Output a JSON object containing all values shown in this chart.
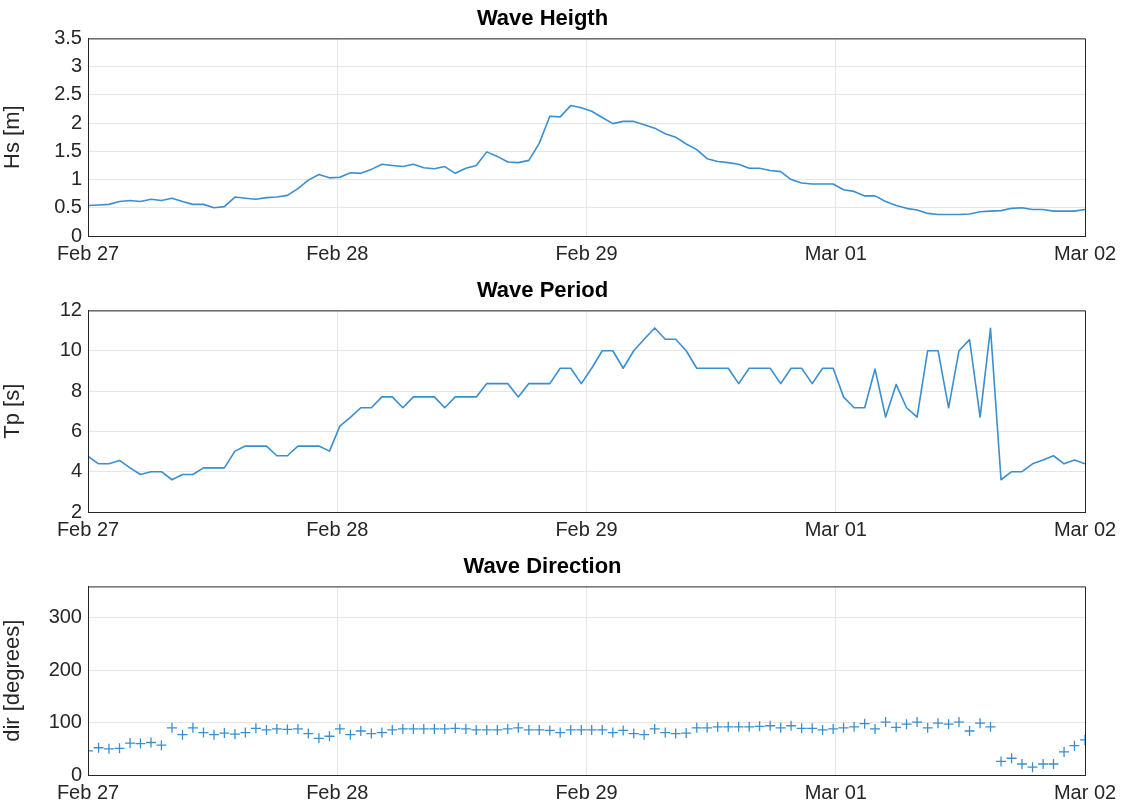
{
  "chart_data": [
    {
      "type": "line",
      "title": "Wave Heigth",
      "ylabel": "Hs [m]",
      "xlim": [
        "--02-27",
        "--03-02"
      ],
      "xticks": [
        {
          "value": "--02-27",
          "label": "Feb 27"
        },
        {
          "value": "--02-28",
          "label": "Feb 28"
        },
        {
          "value": "--02-29",
          "label": "Feb 29"
        },
        {
          "value": "--03-01",
          "label": "Mar 01"
        },
        {
          "value": "--03-02",
          "label": "Mar 02"
        }
      ],
      "ylim": [
        0,
        3.5
      ],
      "yticks": [
        0,
        0.5,
        1,
        1.5,
        2,
        2.5,
        3,
        3.5
      ],
      "grid": true,
      "marker": "none",
      "x": [
        "--02-27T00:00",
        "--02-27T01:01",
        "--02-27T02:01",
        "--02-27T03:02",
        "--02-27T04:03",
        "--02-27T05:03",
        "--02-27T06:04",
        "--02-27T07:04",
        "--02-27T08:05",
        "--02-27T09:06",
        "--02-27T10:06",
        "--02-27T11:07",
        "--02-27T12:08",
        "--02-27T13:08",
        "--02-27T14:09",
        "--02-27T15:09",
        "--02-27T16:10",
        "--02-27T17:11",
        "--02-27T18:11",
        "--02-27T19:12",
        "--02-27T20:13",
        "--02-27T21:13",
        "--02-27T22:14",
        "--02-27T23:15",
        "--02-28T00:15",
        "--02-28T01:16",
        "--02-28T02:16",
        "--02-28T03:17",
        "--02-28T04:18",
        "--02-28T05:18",
        "--02-28T06:19",
        "--02-28T07:20",
        "--02-28T08:20",
        "--02-28T09:21",
        "--02-28T10:21",
        "--02-28T11:22",
        "--02-28T12:23",
        "--02-28T13:23",
        "--02-28T14:24",
        "--02-28T15:25",
        "--02-28T16:25",
        "--02-28T17:26",
        "--02-28T18:27",
        "--02-28T19:27",
        "--02-28T20:28",
        "--02-28T21:28",
        "--02-28T22:29",
        "--02-28T23:30",
        "--02-29T00:30",
        "--02-29T01:31",
        "--02-29T02:32",
        "--02-29T03:32",
        "--02-29T04:33",
        "--02-29T05:33",
        "--02-29T06:34",
        "--02-29T07:35",
        "--02-29T08:35",
        "--02-29T09:36",
        "--02-29T10:37",
        "--02-29T11:37",
        "--02-29T12:38",
        "--02-29T13:39",
        "--02-29T14:39",
        "--02-29T15:40",
        "--02-29T16:40",
        "--02-29T17:41",
        "--02-29T18:42",
        "--02-29T19:42",
        "--02-29T20:43",
        "--02-29T21:44",
        "--02-29T22:44",
        "--02-29T23:45",
        "--03-01T00:45",
        "--03-01T01:46",
        "--03-01T02:47",
        "--03-01T03:47",
        "--03-01T04:48",
        "--03-01T05:49",
        "--03-01T06:49",
        "--03-01T07:50",
        "--03-01T08:51",
        "--03-01T09:51",
        "--03-01T10:52",
        "--03-01T11:52",
        "--03-01T12:53",
        "--03-01T13:54",
        "--03-01T14:54",
        "--03-01T15:55",
        "--03-01T16:56",
        "--03-01T17:56",
        "--03-01T18:57",
        "--03-01T19:58",
        "--03-01T20:58",
        "--03-01T21:59",
        "--03-01T22:59",
        "--03-02T00:00"
      ],
      "series": [
        {
          "color": "#3a8fd0",
          "values": [
            0.54,
            0.55,
            0.56,
            0.61,
            0.63,
            0.61,
            0.65,
            0.63,
            0.67,
            0.61,
            0.56,
            0.56,
            0.5,
            0.52,
            0.69,
            0.67,
            0.65,
            0.68,
            0.69,
            0.72,
            0.84,
            0.99,
            1.09,
            1.03,
            1.04,
            1.12,
            1.11,
            1.18,
            1.27,
            1.25,
            1.23,
            1.27,
            1.21,
            1.19,
            1.23,
            1.11,
            1.2,
            1.25,
            1.49,
            1.41,
            1.31,
            1.3,
            1.34,
            1.64,
            2.12,
            2.11,
            2.31,
            2.27,
            2.21,
            2.1,
            1.99,
            2.03,
            2.03,
            1.97,
            1.91,
            1.81,
            1.75,
            1.63,
            1.53,
            1.37,
            1.32,
            1.3,
            1.27,
            1.2,
            1.2,
            1.16,
            1.14,
            1.0,
            0.94,
            0.92,
            0.92,
            0.92,
            0.82,
            0.79,
            0.71,
            0.71,
            0.61,
            0.54,
            0.49,
            0.46,
            0.4,
            0.38,
            0.38,
            0.38,
            0.39,
            0.43,
            0.44,
            0.45,
            0.49,
            0.5,
            0.47,
            0.47,
            0.44,
            0.44,
            0.44,
            0.47
          ]
        }
      ]
    },
    {
      "type": "line",
      "title": "Wave Period",
      "ylabel": "Tp [s]",
      "xlim": [
        "--02-27",
        "--03-02"
      ],
      "xticks": [
        {
          "value": "--02-27",
          "label": "Feb 27"
        },
        {
          "value": "--02-28",
          "label": "Feb 28"
        },
        {
          "value": "--02-29",
          "label": "Feb 29"
        },
        {
          "value": "--03-01",
          "label": "Mar 01"
        },
        {
          "value": "--03-02",
          "label": "Mar 02"
        }
      ],
      "ylim": [
        2,
        12
      ],
      "yticks": [
        2,
        4,
        6,
        8,
        10,
        12
      ],
      "grid": true,
      "marker": "none",
      "x": [
        "--02-27T00:00",
        "--02-27T01:01",
        "--02-27T02:01",
        "--02-27T03:02",
        "--02-27T04:03",
        "--02-27T05:03",
        "--02-27T06:04",
        "--02-27T07:04",
        "--02-27T08:05",
        "--02-27T09:06",
        "--02-27T10:06",
        "--02-27T11:07",
        "--02-27T12:08",
        "--02-27T13:08",
        "--02-27T14:09",
        "--02-27T15:09",
        "--02-27T16:10",
        "--02-27T17:11",
        "--02-27T18:11",
        "--02-27T19:12",
        "--02-27T20:13",
        "--02-27T21:13",
        "--02-27T22:14",
        "--02-27T23:15",
        "--02-28T00:15",
        "--02-28T01:16",
        "--02-28T02:16",
        "--02-28T03:17",
        "--02-28T04:18",
        "--02-28T05:18",
        "--02-28T06:19",
        "--02-28T07:20",
        "--02-28T08:20",
        "--02-28T09:21",
        "--02-28T10:21",
        "--02-28T11:22",
        "--02-28T12:23",
        "--02-28T13:23",
        "--02-28T14:24",
        "--02-28T15:25",
        "--02-28T16:25",
        "--02-28T17:26",
        "--02-28T18:27",
        "--02-28T19:27",
        "--02-28T20:28",
        "--02-28T21:28",
        "--02-28T22:29",
        "--02-28T23:30",
        "--02-29T00:30",
        "--02-29T01:31",
        "--02-29T02:32",
        "--02-29T03:32",
        "--02-29T04:33",
        "--02-29T05:33",
        "--02-29T06:34",
        "--02-29T07:35",
        "--02-29T08:35",
        "--02-29T09:36",
        "--02-29T10:37",
        "--02-29T11:37",
        "--02-29T12:38",
        "--02-29T13:39",
        "--02-29T14:39",
        "--02-29T15:40",
        "--02-29T16:40",
        "--02-29T17:41",
        "--02-29T18:42",
        "--02-29T19:42",
        "--02-29T20:43",
        "--02-29T21:44",
        "--02-29T22:44",
        "--02-29T23:45",
        "--03-01T00:45",
        "--03-01T01:46",
        "--03-01T02:47",
        "--03-01T03:47",
        "--03-01T04:48",
        "--03-01T05:49",
        "--03-01T06:49",
        "--03-01T07:50",
        "--03-01T08:51",
        "--03-01T09:51",
        "--03-01T10:52",
        "--03-01T11:52",
        "--03-01T12:53",
        "--03-01T13:54",
        "--03-01T14:54",
        "--03-01T15:55",
        "--03-01T16:56",
        "--03-01T17:56",
        "--03-01T18:57",
        "--03-01T19:58",
        "--03-01T20:58",
        "--03-01T21:59",
        "--03-01T22:59",
        "--03-02T00:00"
      ],
      "series": [
        {
          "color": "#3a8fd0",
          "values": [
            4.77,
            4.39,
            4.39,
            4.56,
            4.19,
            3.86,
            4.0,
            4.0,
            3.6,
            3.86,
            3.86,
            4.19,
            4.19,
            4.19,
            5.02,
            5.27,
            5.27,
            5.27,
            4.79,
            4.79,
            5.27,
            5.27,
            5.27,
            5.02,
            6.26,
            6.69,
            7.17,
            7.17,
            7.71,
            7.71,
            7.17,
            7.71,
            7.71,
            7.71,
            7.17,
            7.71,
            7.71,
            7.71,
            8.37,
            8.37,
            8.37,
            7.71,
            8.37,
            8.37,
            8.37,
            9.13,
            9.13,
            8.37,
            9.13,
            10.0,
            10.0,
            9.13,
            10.0,
            10.57,
            11.13,
            10.57,
            10.57,
            10.0,
            9.13,
            9.13,
            9.13,
            9.13,
            8.37,
            9.13,
            9.13,
            9.13,
            8.37,
            9.13,
            9.13,
            8.37,
            9.13,
            9.13,
            7.71,
            7.17,
            7.17,
            9.09,
            6.71,
            8.33,
            7.17,
            6.71,
            10.0,
            10.0,
            7.17,
            10.0,
            10.55,
            6.71,
            11.11,
            3.6,
            4.0,
            4.0,
            4.39,
            4.58,
            4.79,
            4.39,
            4.58,
            4.39
          ]
        }
      ]
    },
    {
      "type": "scatter",
      "title": "Wave Direction",
      "ylabel": "dir [degrees]",
      "xlim": [
        "--02-27",
        "--03-02"
      ],
      "xticks": [
        {
          "value": "--02-27",
          "label": "Feb 27"
        },
        {
          "value": "--02-28",
          "label": "Feb 28"
        },
        {
          "value": "--02-29",
          "label": "Feb 29"
        },
        {
          "value": "--03-01",
          "label": "Mar 01"
        },
        {
          "value": "--03-02",
          "label": "Mar 02"
        }
      ],
      "ylim": [
        0,
        360
      ],
      "yticks": [
        0,
        100,
        200,
        300
      ],
      "grid": true,
      "marker": "cross",
      "x": [
        "--02-27T00:00",
        "--02-27T01:01",
        "--02-27T02:01",
        "--02-27T03:02",
        "--02-27T04:03",
        "--02-27T05:03",
        "--02-27T06:04",
        "--02-27T07:04",
        "--02-27T08:05",
        "--02-27T09:06",
        "--02-27T10:06",
        "--02-27T11:07",
        "--02-27T12:08",
        "--02-27T13:08",
        "--02-27T14:09",
        "--02-27T15:09",
        "--02-27T16:10",
        "--02-27T17:11",
        "--02-27T18:11",
        "--02-27T19:12",
        "--02-27T20:13",
        "--02-27T21:13",
        "--02-27T22:14",
        "--02-27T23:15",
        "--02-28T00:15",
        "--02-28T01:16",
        "--02-28T02:16",
        "--02-28T03:17",
        "--02-28T04:18",
        "--02-28T05:18",
        "--02-28T06:19",
        "--02-28T07:20",
        "--02-28T08:20",
        "--02-28T09:21",
        "--02-28T10:21",
        "--02-28T11:22",
        "--02-28T12:23",
        "--02-28T13:23",
        "--02-28T14:24",
        "--02-28T15:25",
        "--02-28T16:25",
        "--02-28T17:26",
        "--02-28T18:27",
        "--02-28T19:27",
        "--02-28T20:28",
        "--02-28T21:28",
        "--02-28T22:29",
        "--02-28T23:30",
        "--02-29T00:30",
        "--02-29T01:31",
        "--02-29T02:32",
        "--02-29T03:32",
        "--02-29T04:33",
        "--02-29T05:33",
        "--02-29T06:34",
        "--02-29T07:35",
        "--02-29T08:35",
        "--02-29T09:36",
        "--02-29T10:37",
        "--02-29T11:37",
        "--02-29T12:38",
        "--02-29T13:39",
        "--02-29T14:39",
        "--02-29T15:40",
        "--02-29T16:40",
        "--02-29T17:41",
        "--02-29T18:42",
        "--02-29T19:42",
        "--02-29T20:43",
        "--02-29T21:44",
        "--02-29T22:44",
        "--02-29T23:45",
        "--03-01T00:45",
        "--03-01T01:46",
        "--03-01T02:47",
        "--03-01T03:47",
        "--03-01T04:48",
        "--03-01T05:49",
        "--03-01T06:49",
        "--03-01T07:50",
        "--03-01T08:51",
        "--03-01T09:51",
        "--03-01T10:52",
        "--03-01T11:52",
        "--03-01T12:53",
        "--03-01T13:54",
        "--03-01T14:54",
        "--03-01T15:55",
        "--03-01T16:56",
        "--03-01T17:56",
        "--03-01T18:57",
        "--03-01T19:58",
        "--03-01T20:58",
        "--03-01T21:59",
        "--03-01T22:59",
        "--03-02T00:00"
      ],
      "series": [
        {
          "color": "#3a8fd0",
          "values": [
            46,
            52,
            50,
            51,
            61,
            60,
            62,
            57,
            90,
            77,
            90,
            81,
            77,
            80,
            78,
            81,
            89,
            86,
            88,
            87,
            88,
            79,
            70,
            74,
            88,
            77,
            84,
            79,
            81,
            86,
            88,
            88,
            88,
            88,
            88,
            89,
            88,
            86,
            86,
            86,
            88,
            90,
            86,
            86,
            85,
            81,
            86,
            86,
            86,
            86,
            81,
            85,
            79,
            77,
            88,
            81,
            79,
            80,
            90,
            90,
            92,
            92,
            92,
            92,
            93,
            94,
            90,
            94,
            89,
            89,
            86,
            88,
            90,
            92,
            98,
            88,
            101,
            91,
            97,
            101,
            90,
            99,
            97,
            101,
            84,
            99,
            92,
            26,
            32,
            21,
            15,
            21,
            21,
            44,
            56,
            67
          ]
        }
      ]
    }
  ]
}
